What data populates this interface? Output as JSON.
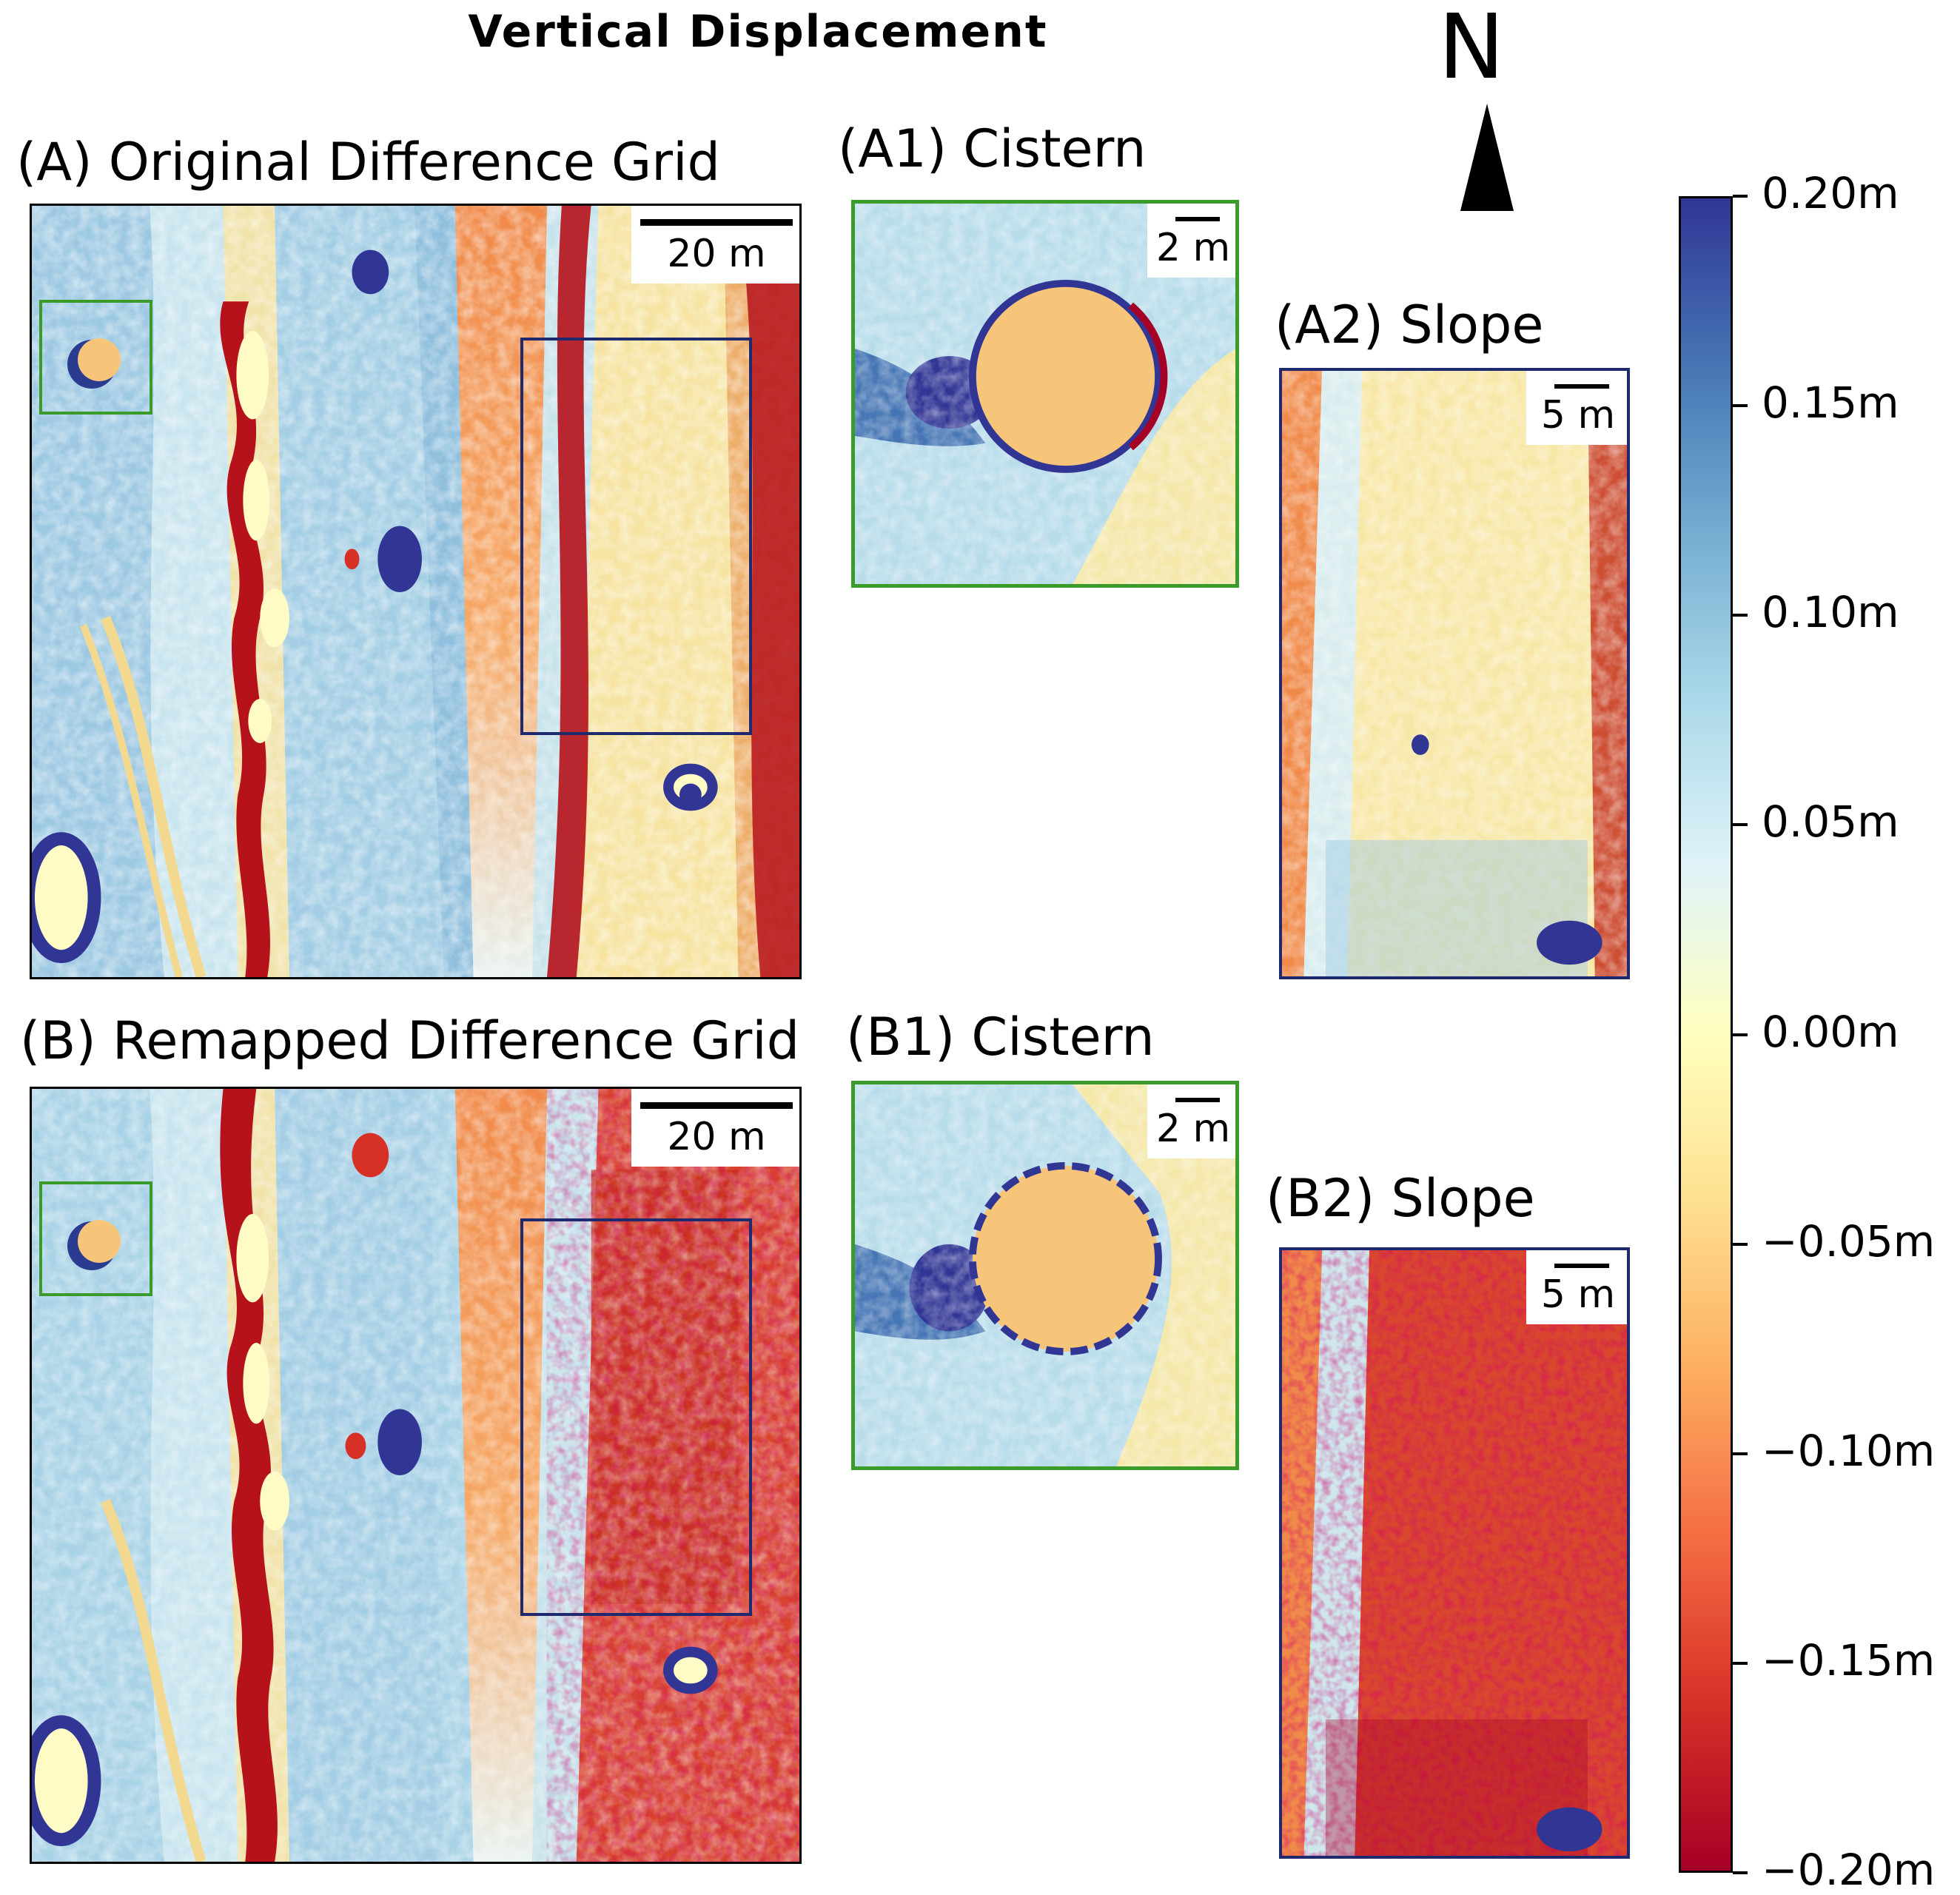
{
  "figure": {
    "title": "Vertical Displacement",
    "north_label": "N"
  },
  "panels": {
    "a": {
      "label": "(A) Original Difference Grid",
      "scale_label": "20 m"
    },
    "a1": {
      "label": "(A1) Cistern",
      "scale_label": "2 m"
    },
    "a2": {
      "label": "(A2) Slope",
      "scale_label": "5 m"
    },
    "b": {
      "label": "(B) Remapped Difference Grid",
      "scale_label": "20 m"
    },
    "b1": {
      "label": "(B1) Cistern",
      "scale_label": "2 m"
    },
    "b2": {
      "label": "(B2) Slope",
      "scale_label": "5 m"
    }
  },
  "colorbar": {
    "colormap": "RdYlBu",
    "min": -0.2,
    "max": 0.2,
    "ticks": [
      "0.20m",
      "0.15m",
      "0.10m",
      "0.05m",
      "0.00m",
      "−0.05m",
      "−0.10m",
      "−0.15m",
      "−0.20m"
    ],
    "tick_values": [
      0.2,
      0.15,
      0.1,
      0.05,
      0.0,
      -0.05,
      -0.1,
      -0.15,
      -0.2
    ]
  },
  "colors": {
    "inset_cistern_frame": "#3a9a2a",
    "inset_slope_frame": "#1f2a6e",
    "panel_frame": "#000000"
  }
}
